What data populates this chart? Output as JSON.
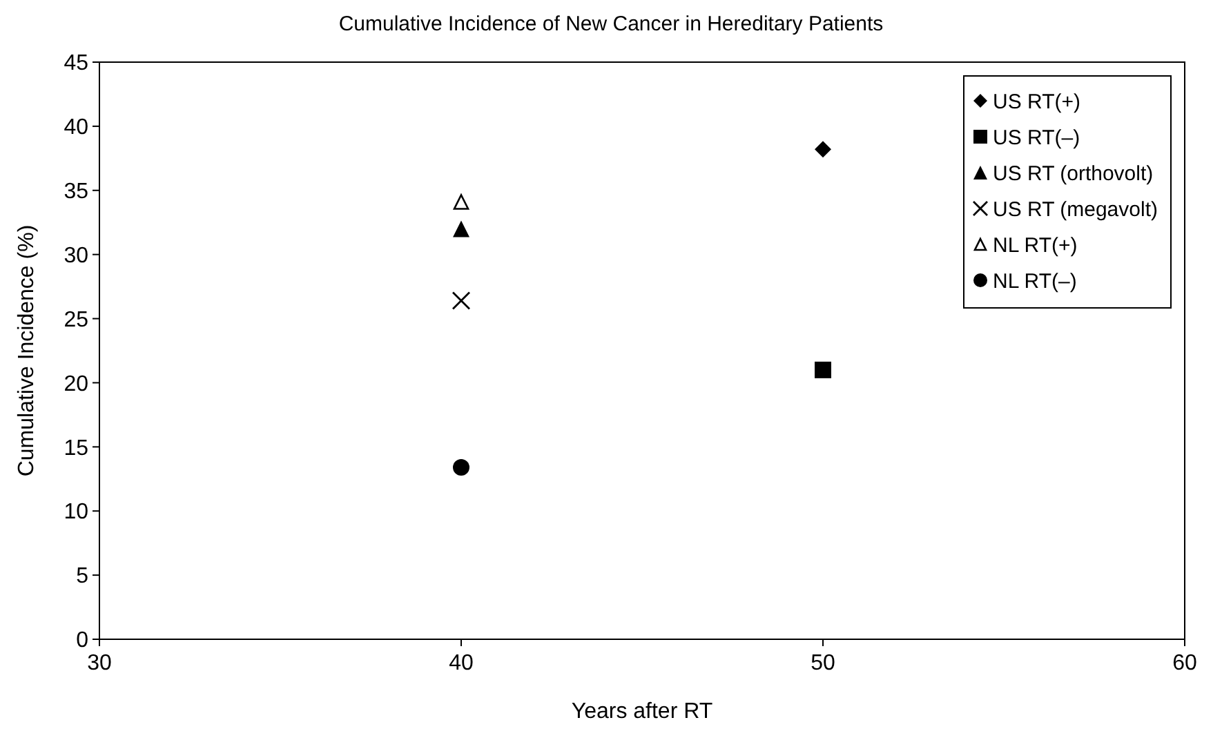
{
  "chart_data": {
    "type": "scatter",
    "title": "Cumulative Incidence of New Cancer in Hereditary Patients",
    "xlabel": "Years after RT",
    "ylabel": "Cumulative Incidence (%)",
    "xlim": [
      30,
      60
    ],
    "xticks": [
      30,
      40,
      50,
      60
    ],
    "ylim": [
      0,
      45
    ],
    "yticks": [
      0,
      5,
      10,
      15,
      20,
      25,
      30,
      35,
      40,
      45
    ],
    "legend": "top right",
    "x": [
      40,
      50
    ],
    "series": [
      {
        "name": "US RT(+)",
        "color": "#000000",
        "marker": "diamond",
        "values": [
          null,
          38.2
        ]
      },
      {
        "name": "US RT(–)",
        "color": "#000000",
        "marker": "square",
        "values": [
          null,
          21
        ]
      },
      {
        "name": "US RT (orthovolt)",
        "color": "#000000",
        "marker": "triangle",
        "values": [
          32,
          null
        ]
      },
      {
        "name": "US RT (megavolt)",
        "color": "#000000",
        "marker": "cross",
        "values": [
          26.4,
          null
        ]
      },
      {
        "name": "NL RT(+)",
        "color": "#000000",
        "marker": "triangle-open",
        "values": [
          34.1,
          null
        ]
      },
      {
        "name": "NL RT(–)",
        "color": "#000000",
        "marker": "circle",
        "values": [
          13.4,
          null
        ]
      }
    ]
  }
}
